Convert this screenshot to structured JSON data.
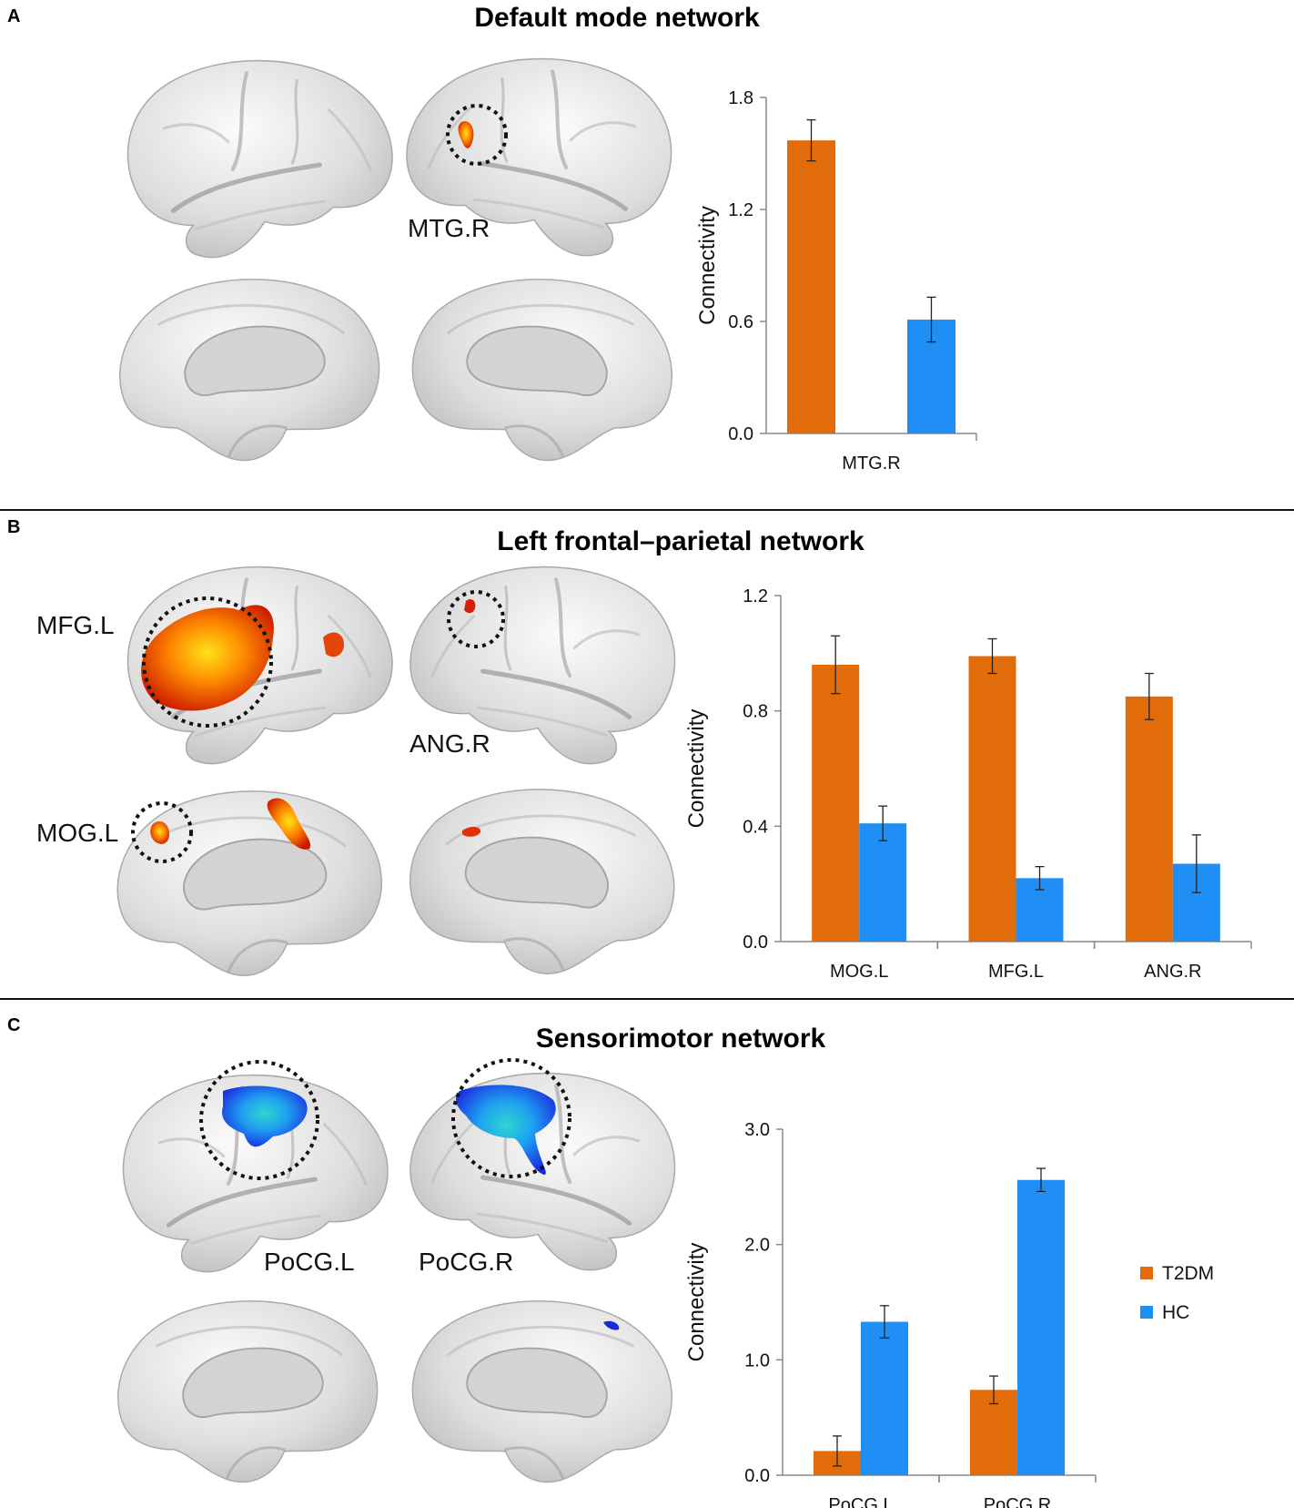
{
  "colors": {
    "t2dm": "#e36c0a",
    "hc": "#1f8ff5",
    "activation_hot": [
      "#cc1a00",
      "#ff5a00",
      "#ffd21a"
    ],
    "activation_cold": [
      "#1a28e0",
      "#1ea0f0",
      "#2fd6d0"
    ],
    "brain_surface": [
      "#fbfbfb",
      "#dedede",
      "#b9b9b9"
    ]
  },
  "legend": {
    "items": [
      {
        "label": "T2DM",
        "color": "#e36c0a"
      },
      {
        "label": "HC",
        "color": "#1f8ff5"
      }
    ],
    "placement": "right of panel C chart"
  },
  "panels": [
    {
      "letter": "A",
      "title": "Default mode network",
      "region_labels": [
        "MTG.R"
      ]
    },
    {
      "letter": "B",
      "title": "Left frontal–parietal network",
      "region_labels": [
        "MFG.L",
        "ANG.R",
        "MOG.L"
      ]
    },
    {
      "letter": "C",
      "title": "Sensorimotor network",
      "region_labels": [
        "PoCG.L",
        "PoCG.R"
      ]
    }
  ],
  "chart_data": [
    {
      "type": "bar",
      "panel": "A",
      "ylabel": "Connectivity",
      "ylim": [
        0,
        1.8
      ],
      "yticks": [
        "0.0",
        "0.6",
        "1.2",
        "1.8"
      ],
      "categories": [
        "MTG.R"
      ],
      "series": [
        {
          "name": "T2DM",
          "values": [
            1.57
          ],
          "errors": [
            0.11
          ]
        },
        {
          "name": "HC",
          "values": [
            0.61
          ],
          "errors": [
            0.12
          ]
        }
      ],
      "grid": false
    },
    {
      "type": "bar",
      "panel": "B",
      "ylabel": "Connectivity",
      "ylim": [
        0,
        1.2
      ],
      "yticks": [
        "0.0",
        "0.4",
        "0.8",
        "1.2"
      ],
      "categories": [
        "MOG.L",
        "MFG.L",
        "ANG.R"
      ],
      "series": [
        {
          "name": "T2DM",
          "values": [
            0.96,
            0.99,
            0.85
          ],
          "errors": [
            0.1,
            0.06,
            0.08
          ]
        },
        {
          "name": "HC",
          "values": [
            0.41,
            0.22,
            0.27
          ],
          "errors": [
            0.06,
            0.04,
            0.1
          ]
        }
      ],
      "grid": false
    },
    {
      "type": "bar",
      "panel": "C",
      "ylabel": "Connectivity",
      "ylim": [
        0,
        3.0
      ],
      "yticks": [
        "0.0",
        "1.0",
        "2.0",
        "3.0"
      ],
      "categories": [
        "PoCG.L",
        "PoCG.R"
      ],
      "series": [
        {
          "name": "T2DM",
          "values": [
            0.21,
            0.74
          ],
          "errors": [
            0.13,
            0.12
          ]
        },
        {
          "name": "HC",
          "values": [
            1.33,
            2.56
          ],
          "errors": [
            0.14,
            0.1
          ]
        }
      ],
      "grid": false
    }
  ]
}
